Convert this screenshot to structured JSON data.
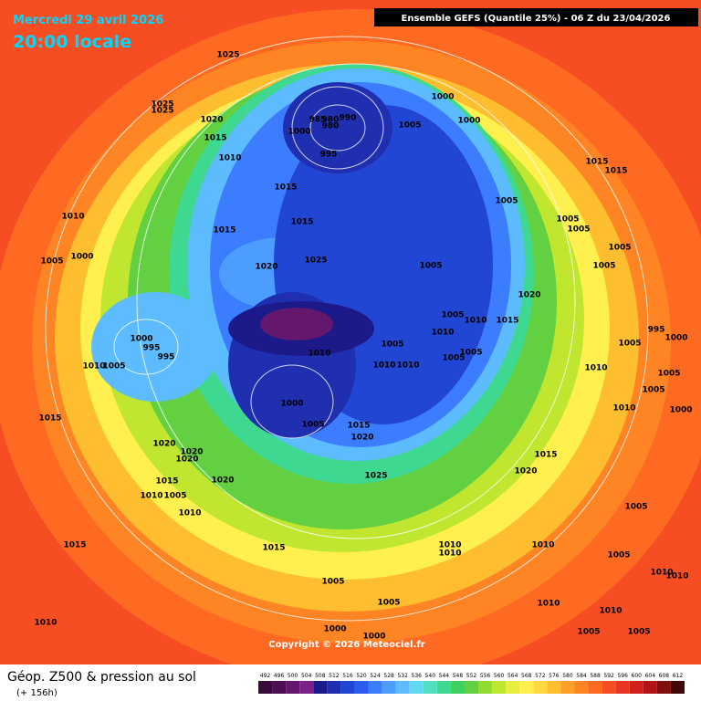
{
  "header": {
    "date": "Mercredi 29 avril 2026",
    "time": "20:00 locale",
    "model": "Ensemble GEFS  (Quantile 25%) - 06 Z du 23/04/2026"
  },
  "footer": {
    "title": "Géop. Z500 & pression au sol",
    "lead": "(+ 156h)",
    "copyright": "Copyright © 2026 Meteociel.fr"
  },
  "legend": {
    "values": [
      492,
      496,
      500,
      504,
      508,
      512,
      516,
      520,
      524,
      528,
      532,
      536,
      540,
      544,
      548,
      552,
      556,
      560,
      564,
      568,
      572,
      576,
      580,
      584,
      588,
      592,
      596,
      600,
      604,
      608,
      612
    ],
    "colors": [
      "#3a0a3a",
      "#4e0f52",
      "#63186d",
      "#7a2288",
      "#1c1a8a",
      "#1f2fb0",
      "#2246d4",
      "#2a5cf0",
      "#3c7cff",
      "#4d9cff",
      "#5cbcff",
      "#62d8f0",
      "#4fe0c0",
      "#3fd890",
      "#40d060",
      "#62d040",
      "#90dc30",
      "#c0e630",
      "#e8ee40",
      "#fff050",
      "#ffd840",
      "#ffbe30",
      "#ffa028",
      "#ff8424",
      "#ff6a22",
      "#f64d22",
      "#e83420",
      "#d0201c",
      "#b01418",
      "#801010",
      "#400808"
    ]
  },
  "isobar_labels": [
    "1025",
    "1025",
    "1025",
    "1020",
    "1015",
    "1010",
    "1015",
    "1010",
    "1000",
    "1005",
    "1015",
    "1020",
    "1025",
    "1015",
    "985",
    "980",
    "990",
    "1000",
    "980",
    "995",
    "1000",
    "1005",
    "1000",
    "1005",
    "1005",
    "1005",
    "1005",
    "1005",
    "1005",
    "1020",
    "1005",
    "1010",
    "1015",
    "1010",
    "1005",
    "1010",
    "1000",
    "995",
    "995",
    "1010",
    "1005",
    "1000",
    "1005",
    "1015",
    "1020",
    "1010",
    "1010",
    "1005",
    "1005",
    "1015",
    "1015",
    "995",
    "1000",
    "1005",
    "1010",
    "1005",
    "1005",
    "1010",
    "1000",
    "1015",
    "1020",
    "1020",
    "1020",
    "1020",
    "1015",
    "1010",
    "1005",
    "1010",
    "1015",
    "1015",
    "1025",
    "1015",
    "1020",
    "1005",
    "1010",
    "1010",
    "1010",
    "1005",
    "1010",
    "1010",
    "1005",
    "1005",
    "1010",
    "1010",
    "1005",
    "1005",
    "1000",
    "1000",
    "1010"
  ]
}
